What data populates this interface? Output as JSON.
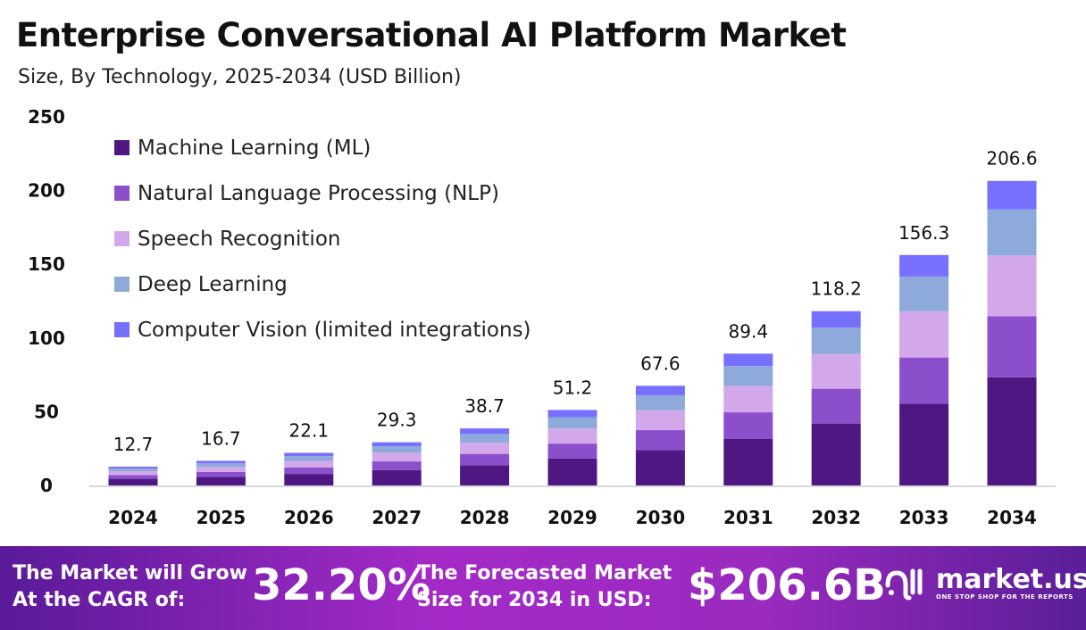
{
  "chart_data": {
    "type": "bar",
    "stacked": true,
    "title": "Enterprise Conversational AI Platform Market",
    "subtitle": "Size, By Technology, 2025-2034 (USD Billion)",
    "categories": [
      "2024",
      "2025",
      "2026",
      "2027",
      "2028",
      "2029",
      "2030",
      "2031",
      "2032",
      "2033",
      "2034"
    ],
    "totals": [
      "12.7",
      "16.7",
      "22.1",
      "29.3",
      "38.7",
      "51.2",
      "67.6",
      "89.4",
      "118.2",
      "156.3",
      "206.6"
    ],
    "series": [
      {
        "name": "Machine Learning (ML)",
        "color": "#4e1782",
        "values": [
          4.5,
          5.9,
          7.8,
          10.4,
          13.7,
          18.2,
          24.0,
          31.7,
          42.0,
          55.5,
          73.4
        ]
      },
      {
        "name": "Natural Language Processing (NLP)",
        "color": "#8c4fcc",
        "values": [
          2.5,
          3.3,
          4.4,
          5.9,
          7.7,
          10.2,
          13.5,
          17.9,
          23.6,
          31.3,
          41.4
        ]
      },
      {
        "name": "Speech Recognition",
        "color": "#d3a8ea",
        "values": [
          2.5,
          3.3,
          4.4,
          5.9,
          7.7,
          10.2,
          13.5,
          17.9,
          23.6,
          31.3,
          41.2
        ]
      },
      {
        "name": "Deep Learning",
        "color": "#8eaadb",
        "values": [
          1.9,
          2.5,
          3.3,
          4.4,
          5.8,
          7.7,
          10.2,
          13.5,
          17.8,
          23.6,
          31.2
        ]
      },
      {
        "name": "Computer Vision (limited integrations)",
        "color": "#776ffe",
        "values": [
          1.3,
          1.7,
          2.2,
          2.7,
          3.8,
          4.9,
          6.4,
          8.4,
          11.2,
          14.6,
          19.4
        ]
      }
    ],
    "yticks": [
      "0",
      "50",
      "100",
      "150",
      "200",
      "250"
    ],
    "ylim": [
      0,
      250
    ],
    "grid": false,
    "legend": "top-left"
  },
  "footer": {
    "cagr_label_1": "The Market will Grow",
    "cagr_label_2": "At the CAGR of:",
    "cagr_value": "32.20%",
    "size_label_1": "The Forecasted Market",
    "size_label_2": "Size for 2034 in USD:",
    "size_value": "$206.6B",
    "brand": "market.us",
    "tagline": "ONE STOP SHOP FOR THE REPORTS"
  }
}
